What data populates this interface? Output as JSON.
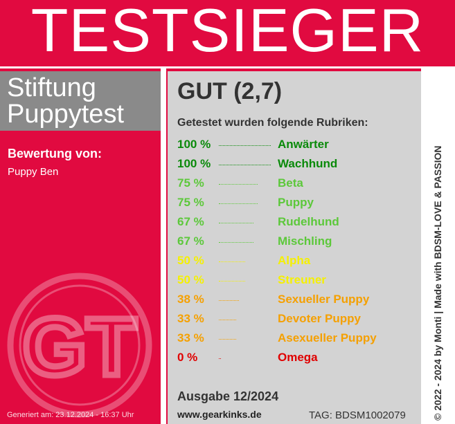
{
  "banner": {
    "title": "TESTSIEGER"
  },
  "logo": {
    "line1": "Stiftung",
    "line2": "Puppytest"
  },
  "rating": {
    "label": "Bewertung von:",
    "name": "Puppy Ben"
  },
  "emblem": {
    "letters": "GT",
    "icon": "gt-seal-icon"
  },
  "generated": "Generiert am: 23.12.2024 - 16:37 Uhr",
  "result": {
    "grade": "GUT (2,7)",
    "subtitle": "Getestet wurden folgende Rubriken:"
  },
  "rubrics": [
    {
      "pct": "100 %",
      "value": 100,
      "name": "Anwärter",
      "color": "#0a8a0a"
    },
    {
      "pct": "100 %",
      "value": 100,
      "name": "Wachhund",
      "color": "#0a8a0a"
    },
    {
      "pct": "75 %",
      "value": 75,
      "name": "Beta",
      "color": "#5cc83a"
    },
    {
      "pct": "75 %",
      "value": 75,
      "name": "Puppy",
      "color": "#5cc83a"
    },
    {
      "pct": "67 %",
      "value": 67,
      "name": "Rudelhund",
      "color": "#5cc83a"
    },
    {
      "pct": "67 %",
      "value": 67,
      "name": "Mischling",
      "color": "#5cc83a"
    },
    {
      "pct": "50 %",
      "value": 50,
      "name": "Alpha",
      "color": "#f5f000"
    },
    {
      "pct": "50 %",
      "value": 50,
      "name": "Streuner",
      "color": "#f5f000"
    },
    {
      "pct": "38 %",
      "value": 38,
      "name": "Sexueller Puppy",
      "color": "#f5a000"
    },
    {
      "pct": "33 %",
      "value": 33,
      "name": "Devoter Puppy",
      "color": "#f5a000"
    },
    {
      "pct": "33 %",
      "value": 33,
      "name": "Asexueller Puppy",
      "color": "#f5a000"
    },
    {
      "pct": "0 %",
      "value": 0,
      "name": "Omega",
      "color": "#e00000"
    }
  ],
  "footer": {
    "edition": "Ausgabe 12/2024",
    "website": "www.gearkinks.de",
    "tag": "TAG: BDSM1002079"
  },
  "credit": "© 2022 - 2024 by Monti | Made with BDSM-LOVE & PASSION",
  "colors": {
    "brand_red": "#e10a40",
    "panel_gray": "#d3d3d3",
    "logo_gray": "#8a8a8a"
  }
}
